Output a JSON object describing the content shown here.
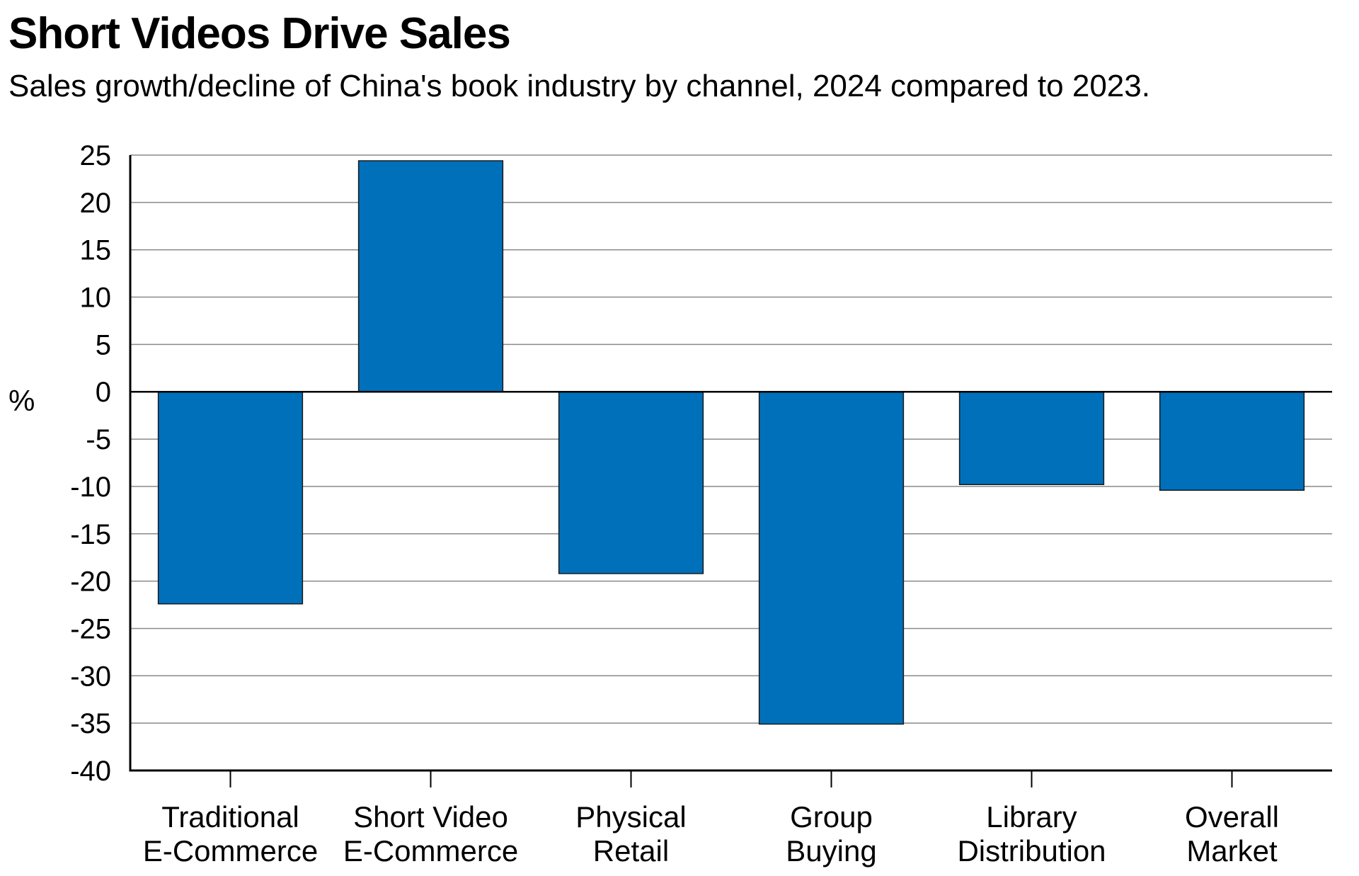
{
  "chart_data": {
    "type": "bar",
    "title": "Short Videos Drive Sales",
    "subtitle": "Sales growth/decline of China's book industry by channel, 2024 compared to 2023.",
    "xlabel": "",
    "ylabel": "%",
    "categories": [
      [
        "Traditional",
        "E-Commerce"
      ],
      [
        "Short Video",
        "E-Commerce"
      ],
      [
        "Physical",
        "Retail"
      ],
      [
        "Group",
        "Buying"
      ],
      [
        "Library",
        "Distribution"
      ],
      [
        "Overall",
        "Market"
      ]
    ],
    "values": [
      -22.4,
      24.4,
      -19.2,
      -35.1,
      -9.8,
      -10.4
    ],
    "ylim": [
      -40,
      25
    ],
    "yticks": [
      25,
      20,
      15,
      10,
      5,
      0,
      -5,
      -10,
      -15,
      -20,
      -25,
      -30,
      -35,
      -40
    ],
    "grid": true,
    "legend": "none",
    "bar_color": "#0070BB",
    "bar_edge_color": "#1a1a1a",
    "grid_color": "#8a8a8a"
  }
}
